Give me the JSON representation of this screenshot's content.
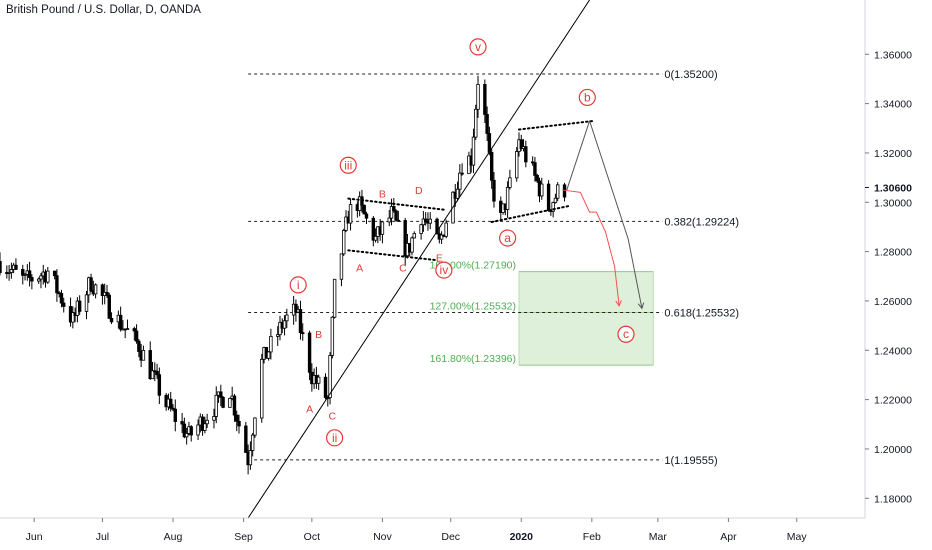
{
  "header": {
    "title": "British Pound / U.S. Dollar, D, OANDA"
  },
  "colors": {
    "up": "#ffffff",
    "down": "#000000",
    "wick": "#000000",
    "red": "#e53935",
    "green": "#4caf50",
    "zone": "#dff0da",
    "axis": "#787b86"
  },
  "chart_data": {
    "type": "candlestick",
    "title": "British Pound / U.S. Dollar, D, OANDA",
    "ylim": [
      1.172,
      1.382
    ],
    "x_range": [
      "2019-05-17",
      "2020-05-31"
    ],
    "y_ticks": [
      1.18,
      1.2,
      1.22,
      1.24,
      1.26,
      1.28,
      1.3,
      1.32,
      1.34,
      1.36
    ],
    "y_tick_labels": [
      "1.18000",
      "1.20000",
      "1.22000",
      "1.24000",
      "1.26000",
      "1.28000",
      "1.30000",
      "1.32000",
      "1.34000",
      "1.36000"
    ],
    "last_price": {
      "value": 1.306,
      "label": "1.30600"
    },
    "x_ticks": [
      {
        "label": "Jun",
        "date": "2019-06-01"
      },
      {
        "label": "Jul",
        "date": "2019-07-01"
      },
      {
        "label": "Aug",
        "date": "2019-08-01"
      },
      {
        "label": "Sep",
        "date": "2019-09-01"
      },
      {
        "label": "Oct",
        "date": "2019-10-01"
      },
      {
        "label": "Nov",
        "date": "2019-11-01"
      },
      {
        "label": "Dec",
        "date": "2019-12-01"
      },
      {
        "label": "2020",
        "date": "2020-01-01",
        "bold": true
      },
      {
        "label": "Feb",
        "date": "2020-02-01"
      },
      {
        "label": "Mar",
        "date": "2020-03-01"
      },
      {
        "label": "Apr",
        "date": "2020-04-01"
      },
      {
        "label": "May",
        "date": "2020-05-01"
      }
    ],
    "price_path": [
      [
        "2019-05-17",
        1.276
      ],
      [
        "2019-05-28",
        1.268
      ],
      [
        "2019-06-07",
        1.272
      ],
      [
        "2019-06-18",
        1.252
      ],
      [
        "2019-06-26",
        1.268
      ],
      [
        "2019-07-08",
        1.252
      ],
      [
        "2019-07-17",
        1.242
      ],
      [
        "2019-07-29",
        1.218
      ],
      [
        "2019-08-08",
        1.205
      ],
      [
        "2019-08-16",
        1.214
      ],
      [
        "2019-08-26",
        1.224
      ],
      [
        "2019-09-03",
        1.196
      ],
      [
        "2019-09-09",
        1.235
      ],
      [
        "2019-09-19",
        1.252
      ],
      [
        "2019-09-24",
        1.256
      ],
      [
        "2019-10-01",
        1.23
      ],
      [
        "2019-10-08",
        1.22
      ],
      [
        "2019-10-11",
        1.265
      ],
      [
        "2019-10-17",
        1.295
      ],
      [
        "2019-10-21",
        1.3
      ],
      [
        "2019-10-29",
        1.285
      ],
      [
        "2019-11-05",
        1.295
      ],
      [
        "2019-11-12",
        1.28
      ],
      [
        "2019-11-18",
        1.295
      ],
      [
        "2019-11-26",
        1.283
      ],
      [
        "2019-12-06",
        1.316
      ],
      [
        "2019-12-10",
        1.318
      ],
      [
        "2019-12-13",
        1.35
      ],
      [
        "2019-12-16",
        1.334
      ],
      [
        "2019-12-19",
        1.307
      ],
      [
        "2019-12-23",
        1.293
      ],
      [
        "2019-12-28",
        1.31
      ],
      [
        "2019-12-31",
        1.325
      ],
      [
        "2020-01-07",
        1.31
      ],
      [
        "2020-01-13",
        1.298
      ],
      [
        "2020-01-17",
        1.304
      ],
      [
        "2020-01-21",
        1.306
      ]
    ],
    "horizontal_levels": [
      {
        "price": 1.352,
        "label": "0(1.35200)",
        "x1": "2019-09-03",
        "x2": "2020-03-03"
      },
      {
        "price": 1.29224,
        "label": "0.382(1.29224)",
        "x1": "2019-09-03",
        "x2": "2020-03-03"
      },
      {
        "price": 1.25532,
        "label": "0.618(1.25532)",
        "x1": "2019-09-03",
        "x2": "2020-03-03"
      },
      {
        "price": 1.19555,
        "label": "1(1.19555)",
        "x1": "2019-09-03",
        "x2": "2020-03-03"
      }
    ],
    "target_zone": {
      "x1": "2019-12-31",
      "x2": "2020-02-28",
      "y_top": 1.2719,
      "y_bottom": 1.23396,
      "levels": [
        {
          "price": 1.2719,
          "label": "100.00%(1.27190)"
        },
        {
          "price": 1.25532,
          "label": "127.00%(1.25532)"
        },
        {
          "price": 1.23396,
          "label": "161.80%(1.23396)"
        }
      ]
    },
    "trendline": {
      "points": [
        [
          "2019-09-03",
          1.172
        ],
        [
          "2020-01-31",
          1.382
        ]
      ]
    },
    "triangle_1": [
      [
        [
          "2019-10-17",
          1.3015
        ],
        [
          "2019-11-28",
          1.297
        ]
      ],
      [
        [
          "2019-10-17",
          1.2805
        ],
        [
          "2019-11-25",
          1.2765
        ]
      ]
    ],
    "triangle_2": [
      [
        [
          "2019-12-31",
          1.3295
        ],
        [
          "2020-02-02",
          1.333
        ]
      ],
      [
        [
          "2019-12-19",
          1.292
        ],
        [
          "2020-01-22",
          1.2985
        ]
      ]
    ],
    "labels_circled": [
      {
        "text": "i",
        "date": "2019-09-25",
        "price": 1.2665
      },
      {
        "text": "ii",
        "date": "2019-10-11",
        "price": 1.2045
      },
      {
        "text": "iii",
        "date": "2019-10-17",
        "price": 1.315
      },
      {
        "text": "iv",
        "date": "2019-11-28",
        "price": 1.2725
      },
      {
        "text": "v",
        "date": "2019-12-13",
        "price": 1.363
      },
      {
        "text": "a",
        "date": "2019-12-26",
        "price": 1.2855
      },
      {
        "text": "b",
        "date": "2020-01-30",
        "price": 1.3425
      },
      {
        "text": "c",
        "date": "2020-02-16",
        "price": 1.2465
      }
    ],
    "labels_plain": [
      {
        "text": "A",
        "date": "2019-09-30",
        "price": 1.2163
      },
      {
        "text": "B",
        "date": "2019-10-04",
        "price": 1.2465
      },
      {
        "text": "C",
        "date": "2019-10-10",
        "price": 1.2135
      },
      {
        "text": "A",
        "date": "2019-10-22",
        "price": 1.2735
      },
      {
        "text": "B",
        "date": "2019-11-01",
        "price": 1.3035
      },
      {
        "text": "C",
        "date": "2019-11-10",
        "price": 1.2735
      },
      {
        "text": "D",
        "date": "2019-11-17",
        "price": 1.305
      },
      {
        "text": "E",
        "date": "2019-11-26",
        "price": 1.2777
      }
    ],
    "projection_black": [
      [
        "2020-01-21",
        1.305
      ],
      [
        "2020-01-31",
        1.333
      ],
      [
        "2020-02-17",
        1.285
      ],
      [
        "2020-02-23",
        1.257
      ]
    ],
    "projection_red": [
      [
        "2020-01-19",
        1.305
      ],
      [
        "2020-01-27",
        1.304
      ],
      [
        "2020-01-31",
        1.296
      ],
      [
        "2020-02-03",
        1.296
      ],
      [
        "2020-02-07",
        1.288
      ],
      [
        "2020-02-11",
        1.274
      ],
      [
        "2020-02-13",
        1.258
      ]
    ]
  }
}
